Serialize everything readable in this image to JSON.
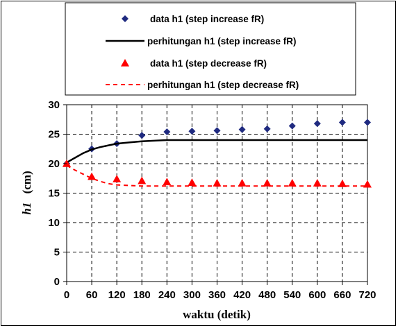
{
  "chart_data": {
    "type": "scatter",
    "xlabel": "waktu (detik)",
    "ylabel_italic": "h1",
    "ylabel_unit": "(cm)",
    "xlim": [
      0,
      720
    ],
    "ylim": [
      0,
      30
    ],
    "x_ticks": [
      "0",
      "60",
      "120",
      "180",
      "240",
      "300",
      "360",
      "420",
      "480",
      "540",
      "600",
      "660",
      "720"
    ],
    "y_ticks": [
      "0",
      "5",
      "10",
      "15",
      "20",
      "25",
      "30"
    ],
    "grid": true,
    "legend_position": "top",
    "series": [
      {
        "name": "data h1 (step increase fR)",
        "kind": "markers",
        "marker": "diamond",
        "color": "#1f2a80",
        "x": [
          0,
          60,
          120,
          180,
          240,
          300,
          360,
          420,
          480,
          540,
          600,
          660,
          720
        ],
        "y": [
          20.0,
          22.5,
          23.4,
          24.8,
          25.4,
          25.5,
          25.6,
          25.8,
          25.9,
          26.4,
          26.8,
          27.0,
          27.0
        ]
      },
      {
        "name": "perhitungan h1 (step increase fR)",
        "kind": "line",
        "dash": "solid",
        "color": "#000000",
        "x": [
          0,
          20,
          40,
          60,
          80,
          100,
          120,
          150,
          180,
          210,
          240,
          300,
          360,
          420,
          480,
          540,
          600,
          660,
          720
        ],
        "y": [
          20.2,
          21.0,
          21.8,
          22.4,
          22.8,
          23.1,
          23.4,
          23.6,
          23.8,
          23.9,
          24.0,
          24.0,
          24.0,
          24.0,
          24.0,
          24.0,
          24.0,
          24.0,
          24.0
        ]
      },
      {
        "name": "data h1 (step decrease fR)",
        "kind": "markers",
        "marker": "triangle",
        "color": "#ff0000",
        "x": [
          0,
          60,
          120,
          180,
          240,
          300,
          360,
          420,
          480,
          540,
          600,
          660,
          720
        ],
        "y": [
          20.0,
          17.8,
          17.4,
          17.1,
          16.9,
          16.8,
          16.7,
          16.7,
          16.7,
          16.7,
          16.7,
          16.6,
          16.5
        ]
      },
      {
        "name": "perhitungan h1 (step decrease fR)",
        "kind": "line",
        "dash": "dashed",
        "color": "#ff0000",
        "x": [
          0,
          20,
          40,
          60,
          80,
          100,
          120,
          150,
          180,
          210,
          240,
          300,
          360,
          420,
          480,
          540,
          600,
          660,
          720
        ],
        "y": [
          19.7,
          18.9,
          18.2,
          17.5,
          17.0,
          16.6,
          16.4,
          16.3,
          16.2,
          16.2,
          16.2,
          16.2,
          16.2,
          16.2,
          16.2,
          16.2,
          16.2,
          16.2,
          16.2
        ]
      }
    ]
  }
}
